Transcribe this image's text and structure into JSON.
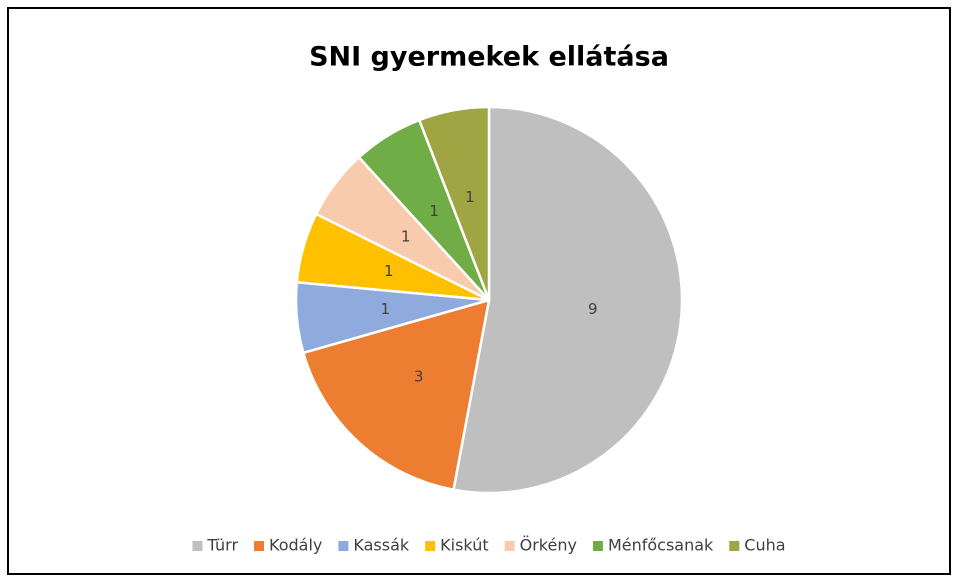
{
  "chart_data": {
    "type": "pie",
    "title": "SNI gyermekek ellátása",
    "categories": [
      "Türr",
      "Kodály",
      "Kassák",
      "Kiskút",
      "Örkény",
      "Ménfőcsanak",
      "Cuha"
    ],
    "values": [
      9,
      3,
      1,
      1,
      1,
      1,
      1
    ],
    "colors": [
      "#bfbfbf",
      "#ed7d31",
      "#8faadc",
      "#ffc000",
      "#f8cbad",
      "#70ad47",
      "#9ea542"
    ],
    "legend": "bottom"
  }
}
